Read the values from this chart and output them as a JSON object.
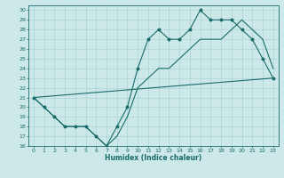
{
  "xlabel": "Humidex (Indice chaleur)",
  "bg_color": "#cce8e8",
  "grid_color": "#aad4d4",
  "line_color": "#1a6b6b",
  "xlim": [
    -0.5,
    23.5
  ],
  "ylim": [
    16,
    30.5
  ],
  "xticks": [
    0,
    1,
    2,
    3,
    4,
    5,
    6,
    7,
    8,
    9,
    10,
    11,
    12,
    13,
    14,
    15,
    16,
    17,
    18,
    19,
    20,
    21,
    22,
    23
  ],
  "yticks": [
    16,
    17,
    18,
    19,
    20,
    21,
    22,
    23,
    24,
    25,
    26,
    27,
    28,
    29,
    30
  ],
  "line1_x": [
    0,
    1,
    2,
    3,
    4,
    5,
    6,
    7,
    8,
    9,
    10,
    11,
    12,
    13,
    14,
    15,
    16,
    17,
    18,
    19,
    20,
    21,
    22,
    23
  ],
  "line1_y": [
    21,
    20,
    19,
    18,
    18,
    18,
    17,
    16,
    18,
    20,
    24,
    27,
    28,
    27,
    27,
    28,
    30,
    29,
    29,
    29,
    28,
    27,
    25,
    23
  ],
  "line2_x": [
    0,
    1,
    2,
    3,
    4,
    5,
    6,
    7,
    8,
    9,
    10,
    11,
    12,
    13,
    14,
    15,
    16,
    17,
    18,
    19,
    20,
    21,
    22,
    23
  ],
  "line2_y": [
    21,
    20,
    19,
    18,
    18,
    18,
    17,
    16,
    17,
    19,
    22,
    23,
    24,
    24,
    25,
    26,
    27,
    27,
    27,
    28,
    29,
    28,
    27,
    24
  ],
  "line3_x": [
    0,
    23
  ],
  "line3_y": [
    21,
    23
  ],
  "tick_fontsize": 4.5,
  "xlabel_fontsize": 5.5,
  "line_width": 0.8,
  "marker_size": 1.8
}
